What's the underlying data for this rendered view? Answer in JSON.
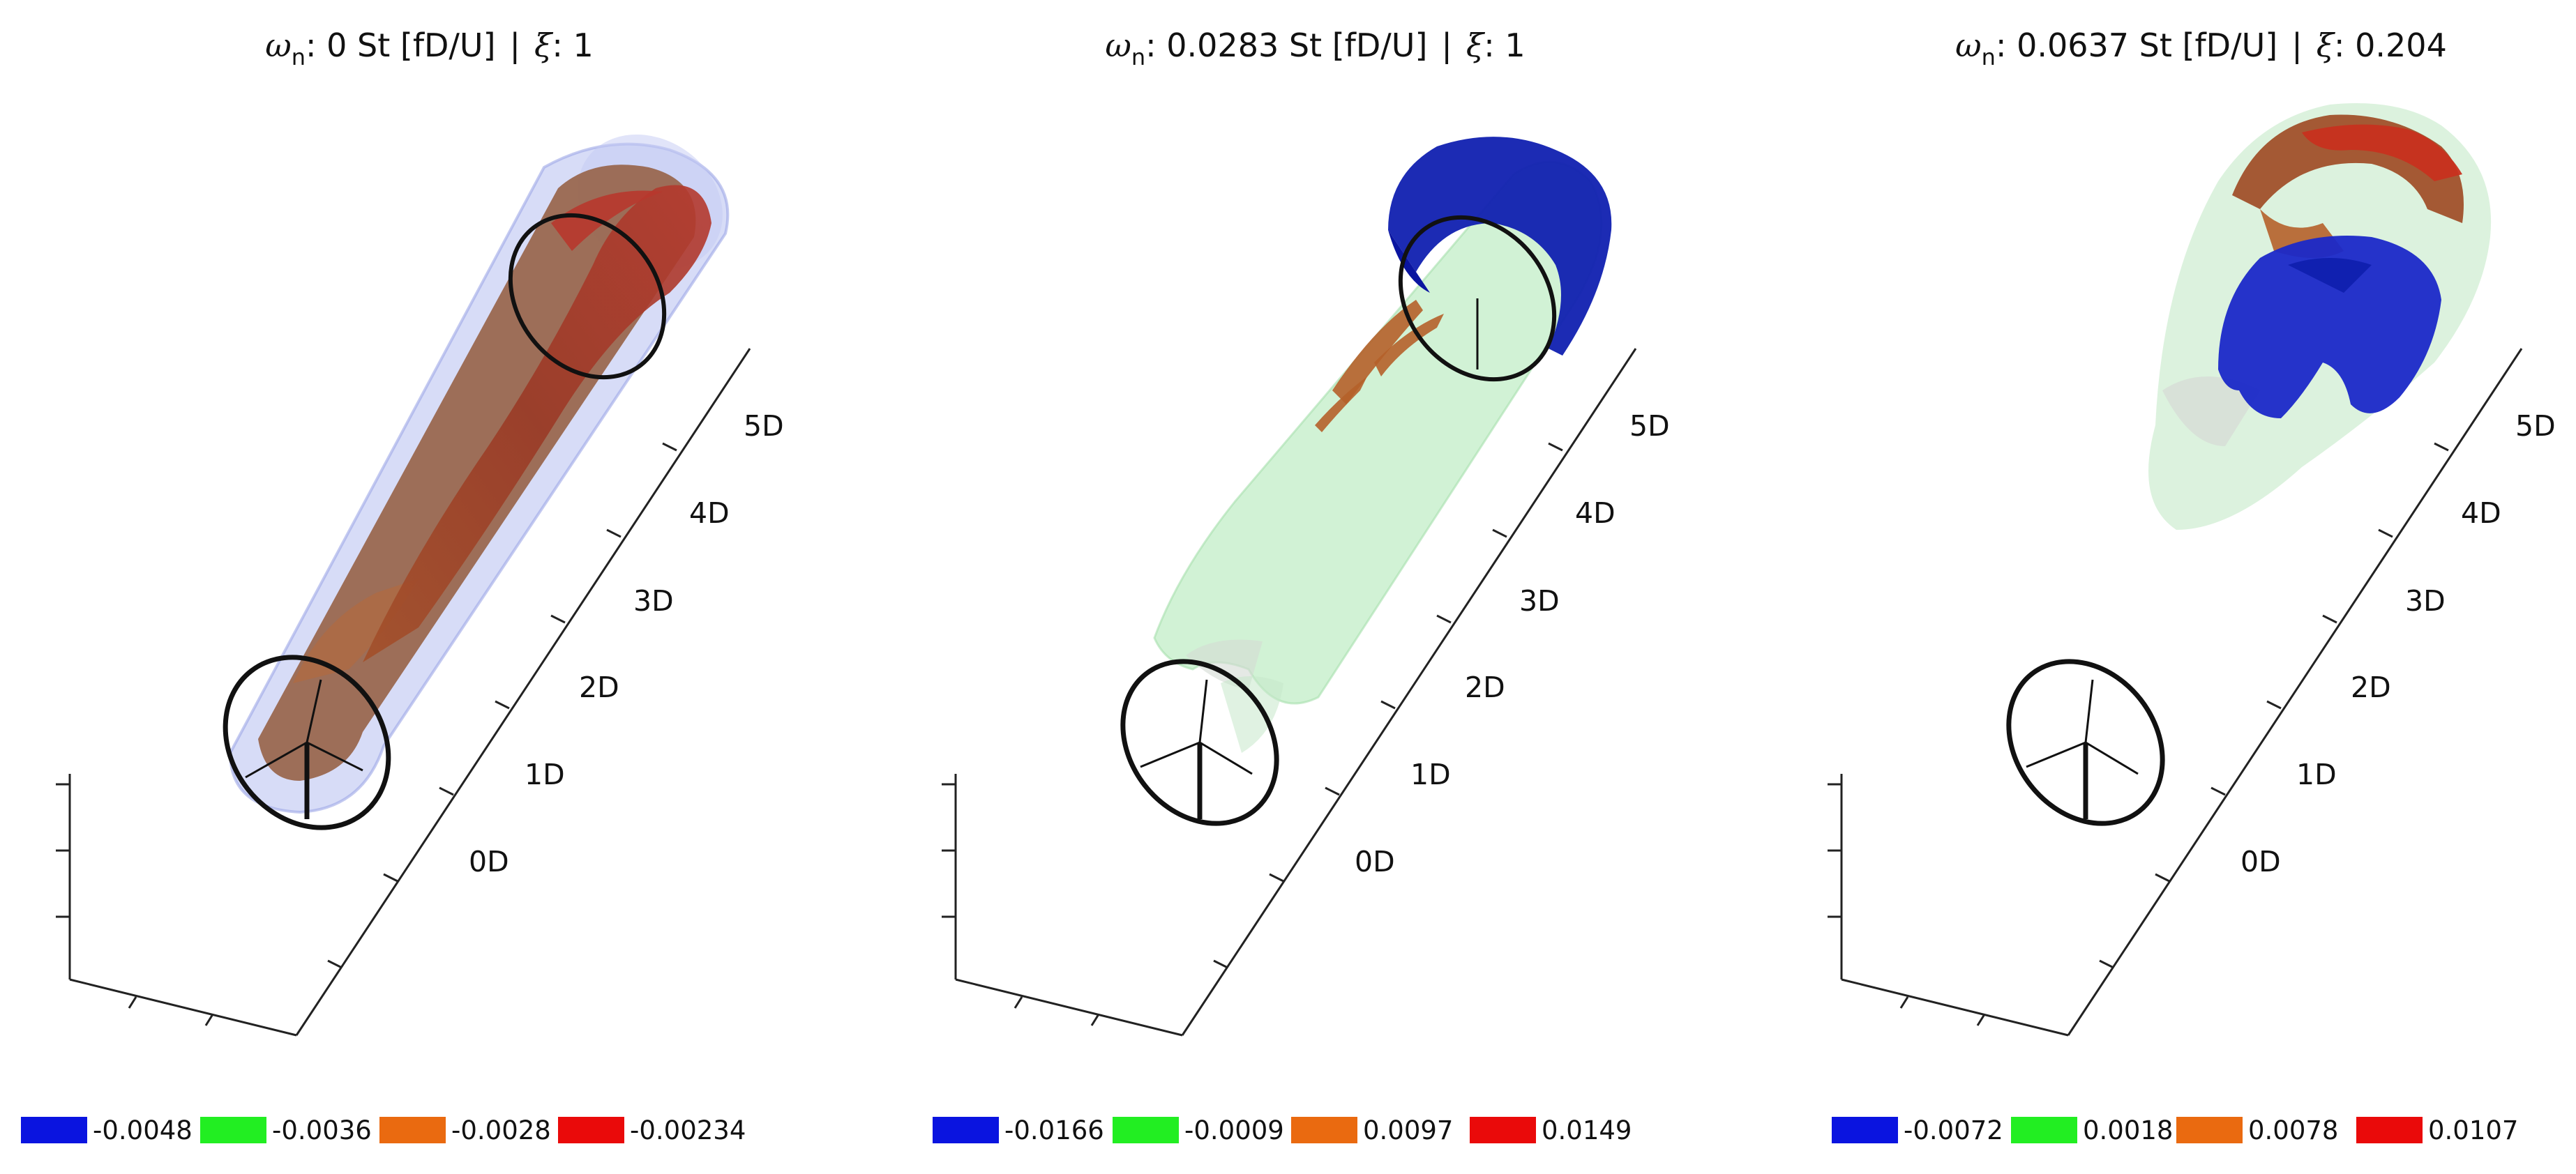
{
  "panels": [
    {
      "title": {
        "omega_symbol": "ω",
        "omega_sub": "n",
        "omega_value": ": 0 St [fD/U]",
        "separator": "|",
        "xi_symbol": "ξ",
        "xi_value": ": 1"
      },
      "axis_labels": [
        "0D",
        "1D",
        "2D",
        "3D",
        "4D",
        "5D"
      ],
      "legend": [
        {
          "label": "-0.0048",
          "color": "#0a14e0"
        },
        {
          "label": "-0.0036",
          "color": "#22ee22"
        },
        {
          "label": "-0.0028",
          "color": "#ea6a10"
        },
        {
          "label": "-0.00234",
          "color": "#ea0a0a"
        }
      ]
    },
    {
      "title": {
        "omega_symbol": "ω",
        "omega_sub": "n",
        "omega_value": ": 0.0283 St [fD/U]",
        "separator": "|",
        "xi_symbol": "ξ",
        "xi_value": ": 1"
      },
      "axis_labels": [
        "0D",
        "1D",
        "2D",
        "3D",
        "4D",
        "5D"
      ],
      "legend": [
        {
          "label": "-0.0166",
          "color": "#0a14e0"
        },
        {
          "label": "-0.0009",
          "color": "#22ee22"
        },
        {
          "label": "0.0097",
          "color": "#ea6a10"
        },
        {
          "label": "0.0149",
          "color": "#ea0a0a"
        }
      ]
    },
    {
      "title": {
        "omega_symbol": "ω",
        "omega_sub": "n",
        "omega_value": ": 0.0637 St [fD/U]",
        "separator": "|",
        "xi_symbol": "ξ",
        "xi_value": ": 0.204"
      },
      "axis_labels": [
        "0D",
        "1D",
        "2D",
        "3D",
        "4D",
        "5D"
      ],
      "legend": [
        {
          "label": "-0.0072",
          "color": "#0a14e0"
        },
        {
          "label": "0.0018",
          "color": "#22ee22"
        },
        {
          "label": "0.0078",
          "color": "#ea6a10"
        },
        {
          "label": "0.0107",
          "color": "#ea0a0a"
        }
      ]
    }
  ]
}
